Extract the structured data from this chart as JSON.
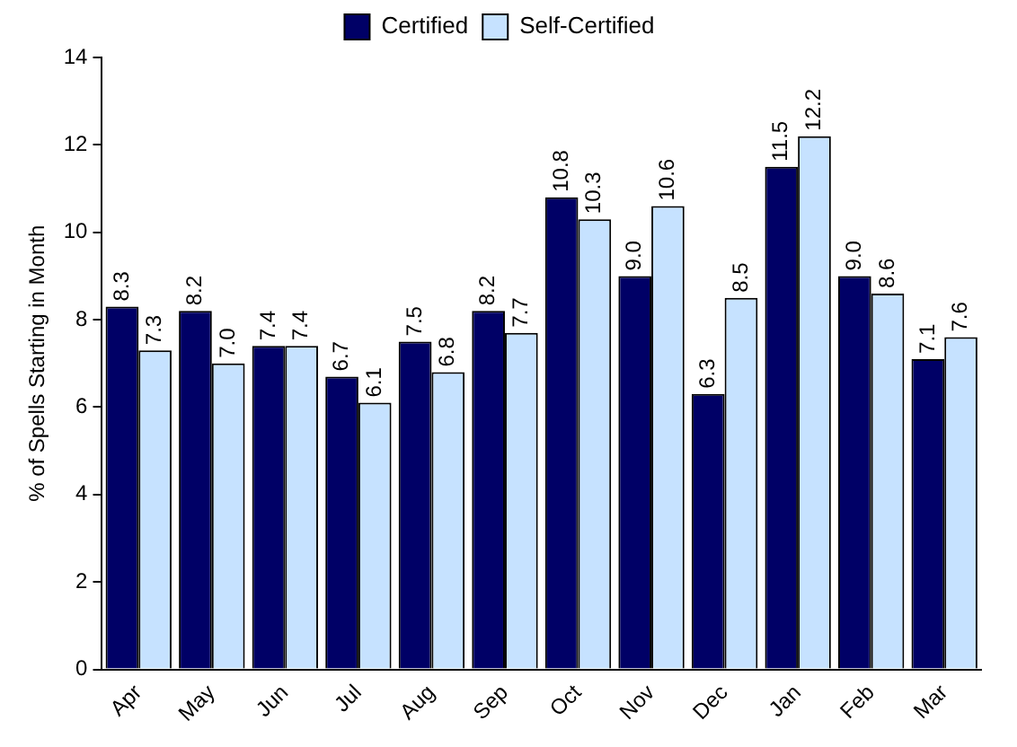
{
  "chart_data": {
    "type": "bar",
    "ylabel": "% of Spells Starting in Month",
    "categories": [
      "Apr",
      "May",
      "Jun",
      "Jul",
      "Aug",
      "Sep",
      "Oct",
      "Nov",
      "Dec",
      "Jan",
      "Feb",
      "Mar"
    ],
    "series": [
      {
        "name": "Certified",
        "color": "#000066",
        "values": [
          8.3,
          8.2,
          7.4,
          6.7,
          7.5,
          8.2,
          10.8,
          9.0,
          6.3,
          11.5,
          9.0,
          7.1
        ],
        "value_labels": [
          "8.3",
          "8.2",
          "7.4",
          "6.7",
          "7.5",
          "8.2",
          "10.8",
          "9.0",
          "6.3",
          "11.5",
          "9.0",
          "7.1"
        ]
      },
      {
        "name": "Self-Certified",
        "color": "#c6e2ff",
        "values": [
          7.3,
          7.0,
          7.4,
          6.1,
          6.8,
          7.7,
          10.3,
          10.6,
          8.5,
          12.2,
          8.6,
          7.6
        ],
        "value_labels": [
          "7.3",
          "7.0",
          "7.4",
          "6.1",
          "6.8",
          "7.7",
          "10.3",
          "10.6",
          "8.5",
          "12.2",
          "8.6",
          "7.6"
        ]
      }
    ],
    "ylim": [
      0,
      14
    ],
    "yticks": [
      0,
      2,
      4,
      6,
      8,
      10,
      12,
      14
    ],
    "grid": false,
    "legend": "top"
  }
}
